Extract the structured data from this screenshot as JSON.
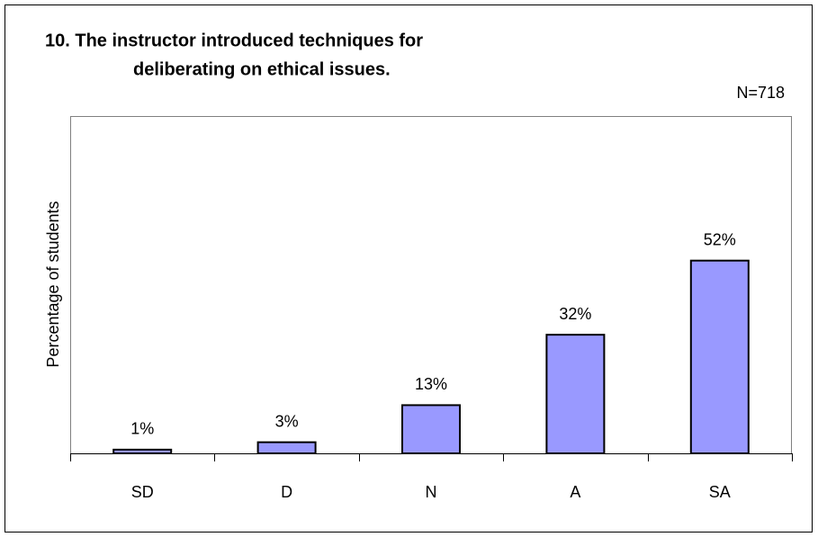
{
  "chart_data": {
    "type": "bar",
    "title": [
      "10. The instructor introduced techniques for",
      "deliberating on ethical issues."
    ],
    "subtitle": "N=718",
    "y_label": "Percentage of students",
    "categories": [
      "SD",
      "D",
      "N",
      "A",
      "SA"
    ],
    "values": [
      1,
      3,
      13,
      32,
      52
    ],
    "value_labels": [
      "1%",
      "3%",
      "13%",
      "32%",
      "52%"
    ],
    "color": "#9999ff",
    "ylim": [
      0,
      91
    ]
  }
}
